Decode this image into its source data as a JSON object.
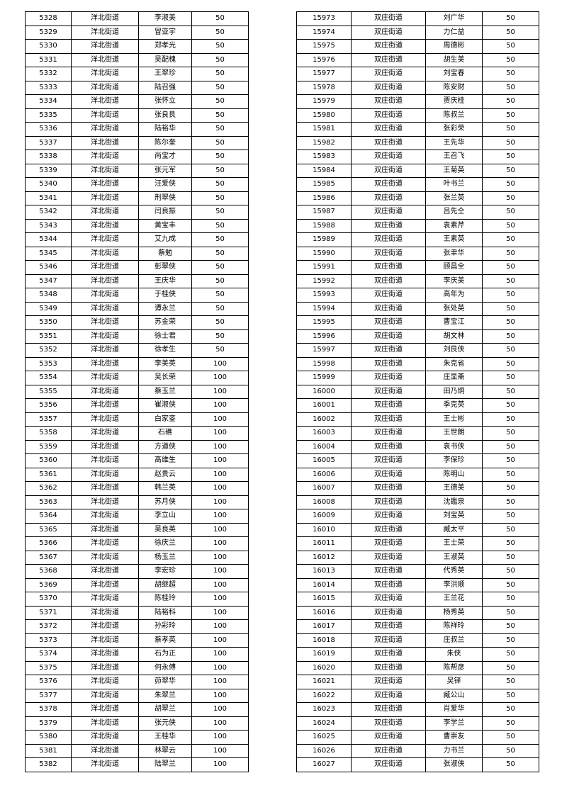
{
  "tables": [
    {
      "street": "洋北街道",
      "rows": [
        [
          "5328",
          "洋北街道",
          "李淑美",
          "50"
        ],
        [
          "5329",
          "洋北街道",
          "冒亚宇",
          "50"
        ],
        [
          "5330",
          "洋北街道",
          "郑孝光",
          "50"
        ],
        [
          "5331",
          "洋北街道",
          "吴配槐",
          "50"
        ],
        [
          "5332",
          "洋北街道",
          "王翠珍",
          "50"
        ],
        [
          "5333",
          "洋北街道",
          "陆召强",
          "50"
        ],
        [
          "5334",
          "洋北街道",
          "张怀立",
          "50"
        ],
        [
          "5335",
          "洋北街道",
          "张良艮",
          "50"
        ],
        [
          "5336",
          "洋北街道",
          "陆裕华",
          "50"
        ],
        [
          "5337",
          "洋北街道",
          "陈尔奎",
          "50"
        ],
        [
          "5338",
          "洋北街道",
          "尚宝才",
          "50"
        ],
        [
          "5339",
          "洋北街道",
          "张元军",
          "50"
        ],
        [
          "5340",
          "洋北街道",
          "汪爱侠",
          "50"
        ],
        [
          "5341",
          "洋北街道",
          "刑翠侠",
          "50"
        ],
        [
          "5342",
          "洋北街道",
          "闫良振",
          "50"
        ],
        [
          "5343",
          "洋北街道",
          "黄宝丰",
          "50"
        ],
        [
          "5344",
          "洋北街道",
          "艾九成",
          "50"
        ],
        [
          "5345",
          "洋北街道",
          "蔡勉",
          "50"
        ],
        [
          "5346",
          "洋北街道",
          "彭翠侠",
          "50"
        ],
        [
          "5347",
          "洋北街道",
          "王庆华",
          "50"
        ],
        [
          "5348",
          "洋北街道",
          "于桂侠",
          "50"
        ],
        [
          "5349",
          "洋北街道",
          "谭永兰",
          "50"
        ],
        [
          "5350",
          "洋北街道",
          "苏金荣",
          "50"
        ],
        [
          "5351",
          "洋北街道",
          "徐士君",
          "50"
        ],
        [
          "5352",
          "洋北街道",
          "徐孝生",
          "50"
        ],
        [
          "5353",
          "洋北街道",
          "李美英",
          "100"
        ],
        [
          "5354",
          "洋北街道",
          "吴长荣",
          "100"
        ],
        [
          "5355",
          "洋北街道",
          "蔡玉兰",
          "100"
        ],
        [
          "5356",
          "洋北街道",
          "崔淑侠",
          "100"
        ],
        [
          "5357",
          "洋北街道",
          "白家銮",
          "100"
        ],
        [
          "5358",
          "洋北街道",
          "石礁",
          "100"
        ],
        [
          "5359",
          "洋北街道",
          "方道侠",
          "100"
        ],
        [
          "5360",
          "洋北街道",
          "高维生",
          "100"
        ],
        [
          "5361",
          "洋北街道",
          "赵贵云",
          "100"
        ],
        [
          "5362",
          "洋北街道",
          "韩兰英",
          "100"
        ],
        [
          "5363",
          "洋北街道",
          "苏月侠",
          "100"
        ],
        [
          "5364",
          "洋北街道",
          "李立山",
          "100"
        ],
        [
          "5365",
          "洋北街道",
          "吴良英",
          "100"
        ],
        [
          "5366",
          "洋北街道",
          "徐庆兰",
          "100"
        ],
        [
          "5367",
          "洋北街道",
          "杨玉兰",
          "100"
        ],
        [
          "5368",
          "洋北街道",
          "李宏珍",
          "100"
        ],
        [
          "5369",
          "洋北街道",
          "胡继超",
          "100"
        ],
        [
          "5370",
          "洋北街道",
          "陈桂玲",
          "100"
        ],
        [
          "5371",
          "洋北街道",
          "陆裕科",
          "100"
        ],
        [
          "5372",
          "洋北街道",
          "孙彩玲",
          "100"
        ],
        [
          "5373",
          "洋北街道",
          "蔡孝英",
          "100"
        ],
        [
          "5374",
          "洋北街道",
          "石为正",
          "100"
        ],
        [
          "5375",
          "洋北街道",
          "何永傅",
          "100"
        ],
        [
          "5376",
          "洋北街道",
          "茆翠华",
          "100"
        ],
        [
          "5377",
          "洋北街道",
          "朱翠兰",
          "100"
        ],
        [
          "5378",
          "洋北街道",
          "胡翠兰",
          "100"
        ],
        [
          "5379",
          "洋北街道",
          "张元侠",
          "100"
        ],
        [
          "5380",
          "洋北街道",
          "王桂华",
          "100"
        ],
        [
          "5381",
          "洋北街道",
          "林翠云",
          "100"
        ],
        [
          "5382",
          "洋北街道",
          "陆翠兰",
          "100"
        ]
      ]
    },
    {
      "street": "双庄街道",
      "rows": [
        [
          "15973",
          "双庄街道",
          "刘广华",
          "50"
        ],
        [
          "15974",
          "双庄街道",
          "力仁益",
          "50"
        ],
        [
          "15975",
          "双庄街道",
          "周德彬",
          "50"
        ],
        [
          "15976",
          "双庄街道",
          "胡生美",
          "50"
        ],
        [
          "15977",
          "双庄街道",
          "刘宝春",
          "50"
        ],
        [
          "15978",
          "双庄街道",
          "陈安财",
          "50"
        ],
        [
          "15979",
          "双庄街道",
          "贾庆桂",
          "50"
        ],
        [
          "15980",
          "双庄街道",
          "陈叔兰",
          "50"
        ],
        [
          "15981",
          "双庄街道",
          "张彩荣",
          "50"
        ],
        [
          "15982",
          "双庄街道",
          "王先华",
          "50"
        ],
        [
          "15983",
          "双庄街道",
          "王召飞",
          "50"
        ],
        [
          "15984",
          "双庄街道",
          "王菊英",
          "50"
        ],
        [
          "15985",
          "双庄街道",
          "叶书兰",
          "50"
        ],
        [
          "15986",
          "双庄街道",
          "张兰英",
          "50"
        ],
        [
          "15987",
          "双庄街道",
          "吕先仝",
          "50"
        ],
        [
          "15988",
          "双庄街道",
          "袁素芹",
          "50"
        ],
        [
          "15989",
          "双庄街道",
          "王素英",
          "50"
        ],
        [
          "15990",
          "双庄街道",
          "张聿华",
          "50"
        ],
        [
          "15991",
          "双庄街道",
          "顾昌全",
          "50"
        ],
        [
          "15992",
          "双庄街道",
          "李庆美",
          "50"
        ],
        [
          "15993",
          "双庄街道",
          "高年为",
          "50"
        ],
        [
          "15994",
          "双庄街道",
          "张处英",
          "50"
        ],
        [
          "15995",
          "双庄街道",
          "曹宝江",
          "50"
        ],
        [
          "15996",
          "双庄街道",
          "胡文林",
          "50"
        ],
        [
          "15997",
          "双庄街道",
          "刘艮侠",
          "50"
        ],
        [
          "15998",
          "双庄街道",
          "朱克省",
          "50"
        ],
        [
          "15999",
          "双庄街道",
          "庄显斋",
          "50"
        ],
        [
          "16000",
          "双庄街道",
          "田乃炯",
          "50"
        ],
        [
          "16001",
          "双庄街道",
          "季克英",
          "50"
        ],
        [
          "16002",
          "双庄街道",
          "王士彬",
          "50"
        ],
        [
          "16003",
          "双庄街道",
          "王世朗",
          "50"
        ],
        [
          "16004",
          "双庄街道",
          "袁书侠",
          "50"
        ],
        [
          "16005",
          "双庄街道",
          "李保珍",
          "50"
        ],
        [
          "16006",
          "双庄街道",
          "陈明山",
          "50"
        ],
        [
          "16007",
          "双庄街道",
          "王德美",
          "50"
        ],
        [
          "16008",
          "双庄街道",
          "沈鑑泉",
          "50"
        ],
        [
          "16009",
          "双庄街道",
          "刘宝英",
          "50"
        ],
        [
          "16010",
          "双庄街道",
          "臧太平",
          "50"
        ],
        [
          "16011",
          "双庄街道",
          "王士荣",
          "50"
        ],
        [
          "16012",
          "双庄街道",
          "王淑英",
          "50"
        ],
        [
          "16013",
          "双庄街道",
          "代秀英",
          "50"
        ],
        [
          "16014",
          "双庄街道",
          "李洪顺",
          "50"
        ],
        [
          "16015",
          "双庄街道",
          "王兰花",
          "50"
        ],
        [
          "16016",
          "双庄街道",
          "杨秀英",
          "50"
        ],
        [
          "16017",
          "双庄街道",
          "陈祥玲",
          "50"
        ],
        [
          "16018",
          "双庄街道",
          "庄叔兰",
          "50"
        ],
        [
          "16019",
          "双庄街道",
          "朱侠",
          "50"
        ],
        [
          "16020",
          "双庄街道",
          "陈帮彦",
          "50"
        ],
        [
          "16021",
          "双庄街道",
          "吴铎",
          "50"
        ],
        [
          "16022",
          "双庄街道",
          "臧公山",
          "50"
        ],
        [
          "16023",
          "双庄街道",
          "肖爱华",
          "50"
        ],
        [
          "16024",
          "双庄街道",
          "李学兰",
          "50"
        ],
        [
          "16025",
          "双庄街道",
          "曹崇友",
          "50"
        ],
        [
          "16026",
          "双庄街道",
          "力书兰",
          "50"
        ],
        [
          "16027",
          "双庄街道",
          "张淑侠",
          "50"
        ]
      ]
    }
  ]
}
